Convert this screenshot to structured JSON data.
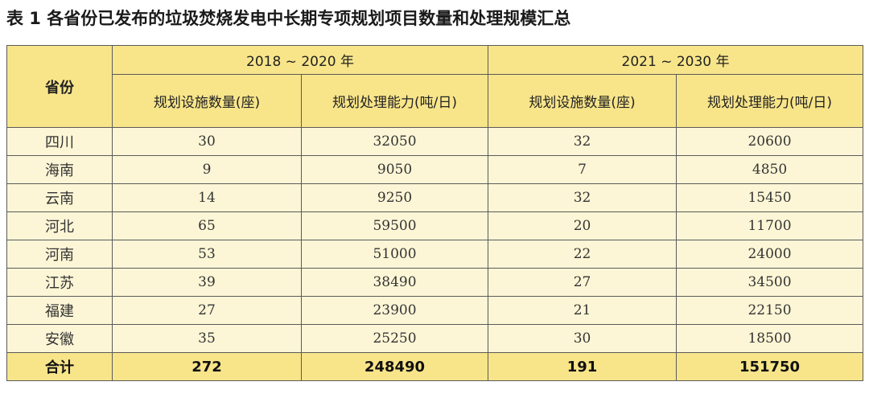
{
  "caption": "表 1 各省份已发布的垃圾焚烧发电中长期专项规划项目数量和处理规模汇总",
  "table": {
    "province_header": "省份",
    "periods": [
      "2018 ~ 2020 年",
      "2021 ~ 2030 年"
    ],
    "subheaders": [
      "规划设施数量(座)",
      "规划处理能力(吨/日)",
      "规划设施数量(座)",
      "规划处理能力(吨/日)"
    ],
    "rows": [
      [
        "四川",
        "30",
        "32050",
        "32",
        "20600"
      ],
      [
        "海南",
        "9",
        "9050",
        "7",
        "4850"
      ],
      [
        "云南",
        "14",
        "9250",
        "32",
        "15450"
      ],
      [
        "河北",
        "65",
        "59500",
        "20",
        "11700"
      ],
      [
        "河南",
        "53",
        "51000",
        "22",
        "24000"
      ],
      [
        "江苏",
        "39",
        "38490",
        "27",
        "34500"
      ],
      [
        "福建",
        "27",
        "23900",
        "21",
        "22150"
      ],
      [
        "安徽",
        "35",
        "25250",
        "30",
        "18500"
      ]
    ],
    "total": [
      "合计",
      "272",
      "248490",
      "191",
      "151750"
    ]
  },
  "colors": {
    "header_background": "#f8e58a",
    "body_background": "#fdf6d6",
    "border": "#5a5a5a"
  }
}
